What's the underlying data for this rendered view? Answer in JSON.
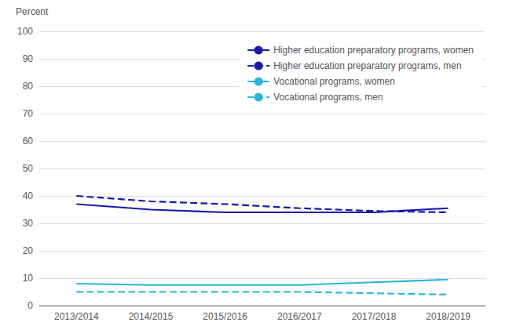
{
  "chart_data": {
    "type": "line",
    "ylabel": "Percent",
    "categories": [
      "2013/2014",
      "2014/2015",
      "2015/2016",
      "2016/2017",
      "2017/2018",
      "2018/2019"
    ],
    "series": [
      {
        "name": "Higher education preparatory programs, women",
        "color": "#1a1aaa",
        "line_style": "solid",
        "values": [
          37,
          35,
          34,
          34,
          34,
          35.5
        ]
      },
      {
        "name": "Higher education preparatory programs, men",
        "color": "#1a1aaa",
        "line_style": "dashed",
        "values": [
          40,
          38,
          37,
          35.5,
          34.5,
          34
        ]
      },
      {
        "name": "Vocational programs, women",
        "color": "#29b6d8",
        "line_style": "solid",
        "values": [
          8,
          7.5,
          7.5,
          7.5,
          8.5,
          9.5
        ]
      },
      {
        "name": "Vocational programs, men",
        "color": "#29b6d8",
        "line_style": "dashed",
        "values": [
          5,
          5,
          5,
          5,
          4.5,
          4
        ]
      }
    ],
    "ylim": [
      0,
      100
    ],
    "yticks": [
      0,
      10,
      20,
      30,
      40,
      50,
      60,
      70,
      80,
      90,
      100
    ],
    "grid": true,
    "legend": "upper right"
  }
}
